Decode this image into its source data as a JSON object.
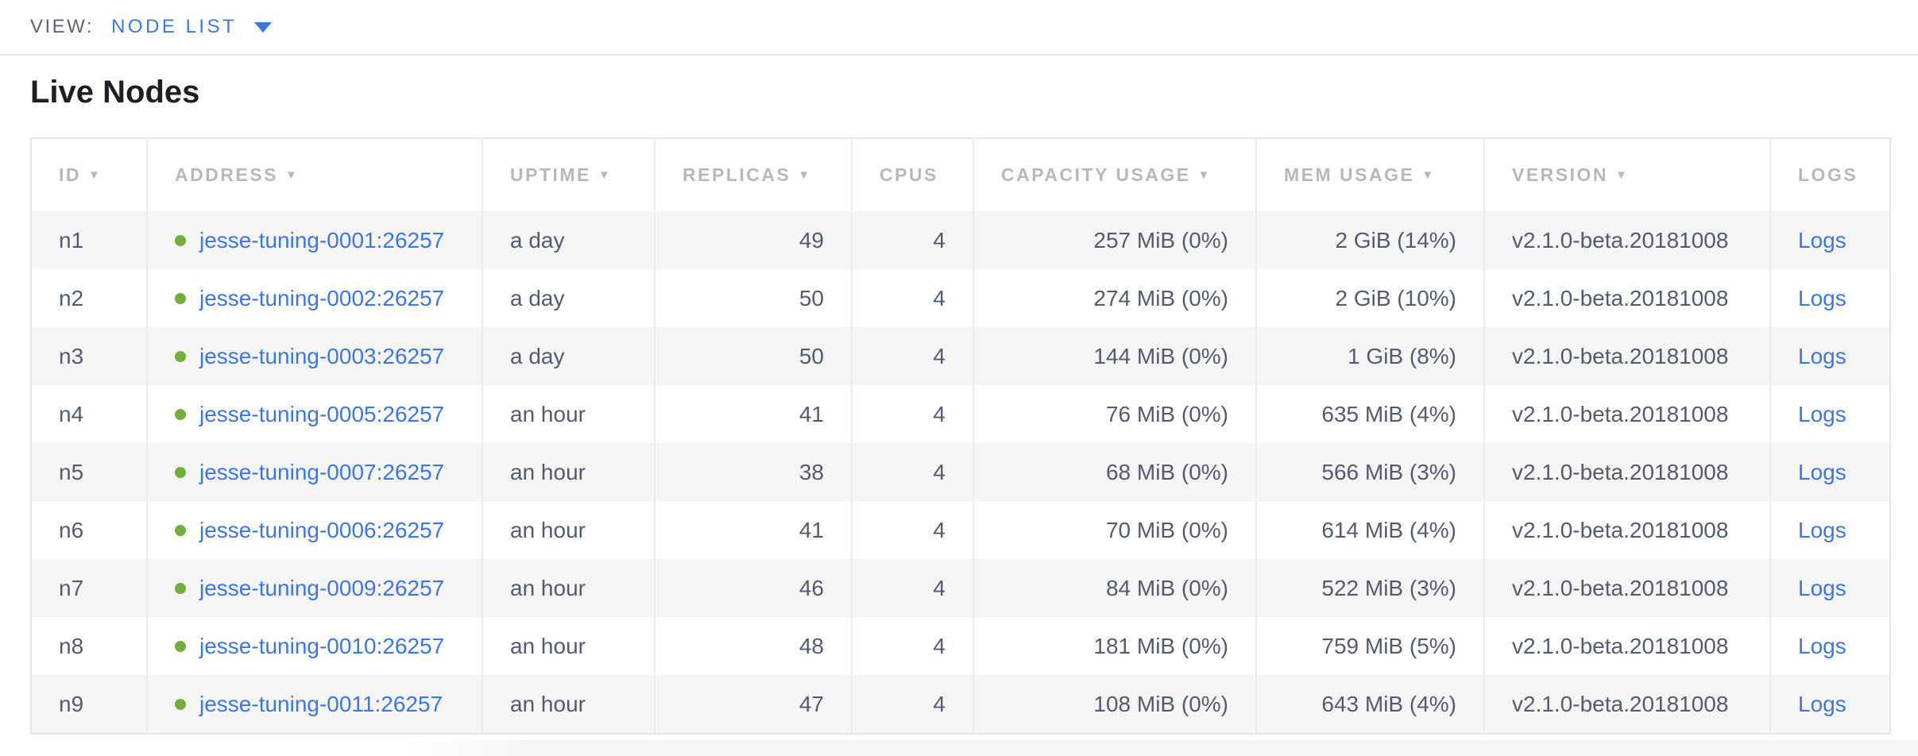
{
  "view_bar": {
    "label": "VIEW:",
    "selected": "NODE LIST"
  },
  "page": {
    "title": "Live Nodes"
  },
  "colors": {
    "accent_blue": "#3d76dd",
    "healthy_green": "#71af3a",
    "header_gray": "#b4b8bf",
    "cell_text": "#535b6e",
    "row_stripe": "#f5f5f6"
  },
  "table": {
    "sort_indicator": "▼",
    "columns": [
      {
        "key": "id",
        "label": "ID",
        "sortable": true,
        "align": "left"
      },
      {
        "key": "address",
        "label": "ADDRESS",
        "sortable": true,
        "align": "left"
      },
      {
        "key": "uptime",
        "label": "UPTIME",
        "sortable": true,
        "align": "left"
      },
      {
        "key": "replicas",
        "label": "REPLICAS",
        "sortable": true,
        "align": "right"
      },
      {
        "key": "cpus",
        "label": "CPUS",
        "sortable": false,
        "align": "right"
      },
      {
        "key": "capacity",
        "label": "CAPACITY USAGE",
        "sortable": true,
        "align": "right"
      },
      {
        "key": "mem",
        "label": "MEM USAGE",
        "sortable": true,
        "align": "right"
      },
      {
        "key": "version",
        "label": "VERSION",
        "sortable": true,
        "align": "left"
      },
      {
        "key": "logs",
        "label": "LOGS",
        "sortable": false,
        "align": "left"
      }
    ],
    "rows": [
      {
        "id": "n1",
        "status": "healthy",
        "address": "jesse-tuning-0001:26257",
        "uptime": "a day",
        "replicas": "49",
        "cpus": "4",
        "capacity": "257 MiB (0%)",
        "mem": "2 GiB (14%)",
        "version": "v2.1.0-beta.20181008",
        "logs": "Logs"
      },
      {
        "id": "n2",
        "status": "healthy",
        "address": "jesse-tuning-0002:26257",
        "uptime": "a day",
        "replicas": "50",
        "cpus": "4",
        "capacity": "274 MiB (0%)",
        "mem": "2 GiB (10%)",
        "version": "v2.1.0-beta.20181008",
        "logs": "Logs"
      },
      {
        "id": "n3",
        "status": "healthy",
        "address": "jesse-tuning-0003:26257",
        "uptime": "a day",
        "replicas": "50",
        "cpus": "4",
        "capacity": "144 MiB (0%)",
        "mem": "1 GiB (8%)",
        "version": "v2.1.0-beta.20181008",
        "logs": "Logs"
      },
      {
        "id": "n4",
        "status": "healthy",
        "address": "jesse-tuning-0005:26257",
        "uptime": "an hour",
        "replicas": "41",
        "cpus": "4",
        "capacity": "76 MiB (0%)",
        "mem": "635 MiB (4%)",
        "version": "v2.1.0-beta.20181008",
        "logs": "Logs"
      },
      {
        "id": "n5",
        "status": "healthy",
        "address": "jesse-tuning-0007:26257",
        "uptime": "an hour",
        "replicas": "38",
        "cpus": "4",
        "capacity": "68 MiB (0%)",
        "mem": "566 MiB (3%)",
        "version": "v2.1.0-beta.20181008",
        "logs": "Logs"
      },
      {
        "id": "n6",
        "status": "healthy",
        "address": "jesse-tuning-0006:26257",
        "uptime": "an hour",
        "replicas": "41",
        "cpus": "4",
        "capacity": "70 MiB (0%)",
        "mem": "614 MiB (4%)",
        "version": "v2.1.0-beta.20181008",
        "logs": "Logs"
      },
      {
        "id": "n7",
        "status": "healthy",
        "address": "jesse-tuning-0009:26257",
        "uptime": "an hour",
        "replicas": "46",
        "cpus": "4",
        "capacity": "84 MiB (0%)",
        "mem": "522 MiB (3%)",
        "version": "v2.1.0-beta.20181008",
        "logs": "Logs"
      },
      {
        "id": "n8",
        "status": "healthy",
        "address": "jesse-tuning-0010:26257",
        "uptime": "an hour",
        "replicas": "48",
        "cpus": "4",
        "capacity": "181 MiB (0%)",
        "mem": "759 MiB (5%)",
        "version": "v2.1.0-beta.20181008",
        "logs": "Logs"
      },
      {
        "id": "n9",
        "status": "healthy",
        "address": "jesse-tuning-0011:26257",
        "uptime": "an hour",
        "replicas": "47",
        "cpus": "4",
        "capacity": "108 MiB (0%)",
        "mem": "643 MiB (4%)",
        "version": "v2.1.0-beta.20181008",
        "logs": "Logs"
      }
    ]
  }
}
